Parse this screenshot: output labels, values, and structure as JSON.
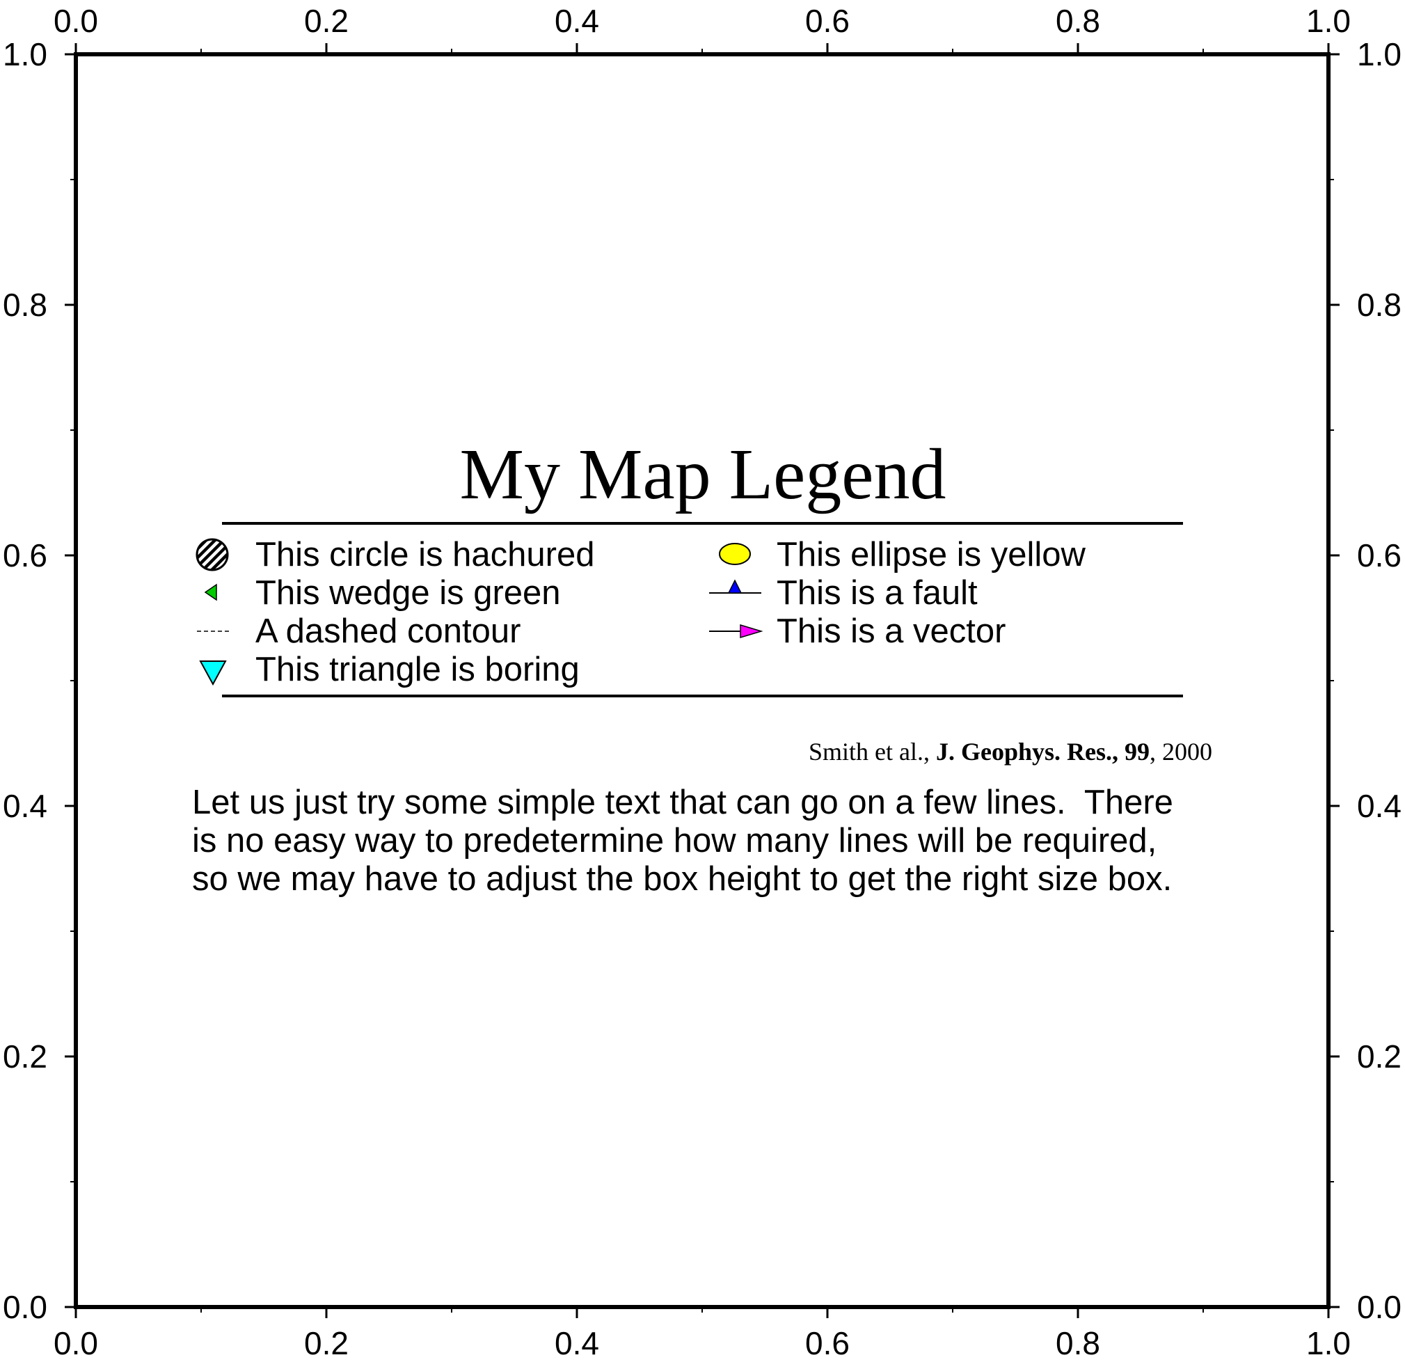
{
  "map": {
    "axes": {
      "x_range": [
        0.0,
        1.0
      ],
      "y_range": [
        0.0,
        1.0
      ],
      "major_ticks": [
        0.0,
        0.2,
        0.4,
        0.6,
        0.8,
        1.0
      ],
      "major_tick_labels": [
        "0.0",
        "0.2",
        "0.4",
        "0.6",
        "0.8",
        "1.0"
      ],
      "minor_ticks": [
        0.1,
        0.3,
        0.5,
        0.7,
        0.9
      ],
      "labels_on": [
        "top",
        "bottom",
        "left",
        "right"
      ]
    },
    "legend": {
      "title": "My Map Legend",
      "left_column": [
        {
          "symbol": "hatched-circle",
          "label": "This circle is hachured"
        },
        {
          "symbol": "green-wedge",
          "label": "This wedge is green"
        },
        {
          "symbol": "dashed-line",
          "label": "A dashed contour"
        },
        {
          "symbol": "cyan-inverted-triangle",
          "label": "This triangle is boring"
        }
      ],
      "right_column": [
        {
          "symbol": "yellow-ellipse",
          "label": "This ellipse is yellow"
        },
        {
          "symbol": "fault-line",
          "label": "This is a fault"
        },
        {
          "symbol": "vector-arrow",
          "label": "This is a vector"
        }
      ],
      "citation": {
        "authors": "Smith et al., ",
        "journal": "J. Geophys. Res., 99",
        "year": ", 2000"
      },
      "paragraph_lines": [
        "Let us just try some simple text that can go on a few lines.  There",
        "is no easy way to predetermine how many lines will be required,",
        "so we may have to adjust the box height to get the right size box."
      ]
    },
    "colors": {
      "frame": "#000000",
      "wedge": "#00cc00",
      "ellipse": "#ffff00",
      "fault_triangle": "#0000ff",
      "vector_head": "#ff00ff",
      "triangle": "#00ffff"
    }
  }
}
